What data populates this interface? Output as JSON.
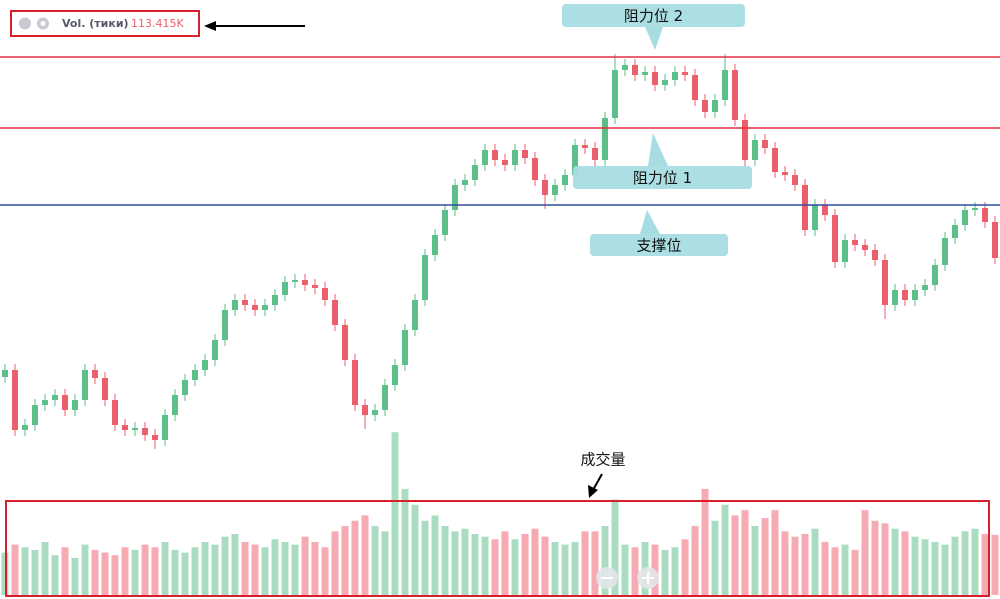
{
  "chart_data": {
    "type": "candlestick",
    "indicator": {
      "name": "Vol. (тики)",
      "value_label": "113.415K"
    },
    "volume_annotation": "成交量",
    "ylim": [
      0,
      599
    ],
    "vlim": [
      0,
      330
    ],
    "open": [
      222,
      229,
      169,
      174,
      194,
      199,
      204,
      189,
      199,
      229,
      221,
      199,
      174,
      169,
      171,
      164,
      159,
      184,
      204,
      219,
      229,
      239,
      259,
      289,
      299,
      294,
      289,
      294,
      304,
      317,
      319,
      314,
      311,
      299,
      274,
      239,
      194,
      184,
      189,
      214,
      234,
      269,
      299,
      344,
      364,
      389,
      414,
      419,
      434,
      449,
      439,
      434,
      449,
      441,
      419,
      404,
      414,
      424,
      454,
      451,
      439,
      481,
      529,
      534,
      524,
      527,
      514,
      519,
      527,
      524,
      499,
      487,
      499,
      529,
      479,
      439,
      459,
      451,
      427,
      424,
      414,
      369,
      394,
      384,
      337,
      359,
      354,
      349,
      339,
      294,
      309,
      299,
      309,
      314,
      334,
      361,
      374,
      389,
      391,
      377
    ],
    "high": [
      235,
      235,
      180,
      200,
      205,
      210,
      210,
      205,
      235,
      235,
      227,
      205,
      180,
      177,
      177,
      170,
      190,
      210,
      225,
      235,
      245,
      265,
      295,
      305,
      305,
      300,
      300,
      310,
      323,
      325,
      325,
      320,
      317,
      305,
      280,
      245,
      200,
      195,
      220,
      240,
      275,
      305,
      350,
      370,
      395,
      420,
      425,
      440,
      455,
      455,
      445,
      455,
      455,
      447,
      425,
      420,
      430,
      460,
      460,
      457,
      487,
      545,
      540,
      540,
      533,
      533,
      525,
      533,
      533,
      530,
      505,
      505,
      545,
      535,
      485,
      465,
      465,
      457,
      433,
      430,
      420,
      400,
      400,
      390,
      365,
      365,
      360,
      355,
      345,
      315,
      315,
      315,
      320,
      340,
      367,
      380,
      395,
      397,
      397,
      383
    ],
    "low": [
      216,
      163,
      163,
      168,
      188,
      193,
      183,
      183,
      193,
      215,
      193,
      168,
      163,
      163,
      158,
      150,
      153,
      178,
      198,
      213,
      223,
      233,
      253,
      283,
      288,
      283,
      283,
      288,
      298,
      311,
      308,
      305,
      293,
      268,
      233,
      188,
      170,
      178,
      183,
      208,
      228,
      263,
      293,
      338,
      358,
      383,
      408,
      413,
      428,
      433,
      428,
      428,
      435,
      413,
      390,
      398,
      408,
      418,
      445,
      433,
      433,
      475,
      523,
      518,
      518,
      508,
      508,
      513,
      518,
      493,
      481,
      481,
      493,
      473,
      433,
      433,
      445,
      421,
      418,
      408,
      363,
      363,
      378,
      331,
      331,
      348,
      343,
      333,
      280,
      288,
      293,
      293,
      303,
      308,
      328,
      355,
      368,
      383,
      371,
      335
    ],
    "close": [
      229,
      169,
      174,
      194,
      199,
      204,
      189,
      199,
      229,
      221,
      199,
      174,
      169,
      171,
      164,
      159,
      184,
      204,
      219,
      229,
      239,
      259,
      289,
      299,
      294,
      289,
      294,
      304,
      317,
      319,
      314,
      311,
      299,
      274,
      239,
      194,
      184,
      189,
      214,
      234,
      269,
      299,
      344,
      364,
      389,
      414,
      419,
      434,
      449,
      439,
      434,
      449,
      441,
      419,
      404,
      414,
      424,
      454,
      451,
      439,
      481,
      529,
      534,
      524,
      527,
      514,
      519,
      527,
      524,
      499,
      487,
      499,
      529,
      479,
      439,
      459,
      451,
      427,
      424,
      414,
      369,
      394,
      384,
      337,
      359,
      354,
      349,
      339,
      294,
      309,
      299,
      309,
      314,
      334,
      361,
      374,
      389,
      391,
      377,
      341
    ],
    "volume": [
      80,
      95,
      90,
      85,
      100,
      75,
      90,
      70,
      95,
      85,
      80,
      75,
      90,
      85,
      95,
      90,
      100,
      85,
      80,
      90,
      100,
      95,
      110,
      115,
      100,
      95,
      90,
      105,
      100,
      95,
      110,
      100,
      90,
      120,
      130,
      140,
      150,
      130,
      120,
      307,
      200,
      170,
      140,
      150,
      130,
      120,
      125,
      115,
      110,
      105,
      120,
      105,
      115,
      125,
      110,
      100,
      95,
      100,
      120,
      120,
      130,
      180,
      95,
      90,
      100,
      95,
      85,
      90,
      105,
      130,
      200,
      140,
      170,
      150,
      160,
      130,
      145,
      160,
      120,
      110,
      115,
      125,
      100,
      90,
      95,
      85,
      160,
      140,
      135,
      125,
      120,
      110,
      105,
      100,
      95,
      110,
      120,
      125,
      115,
      113.415
    ],
    "up_color": "#5cbf8a",
    "down_color": "#e9606c",
    "volume_up_color": "#a9dcc0",
    "volume_down_color": "#f6aab2",
    "levels": [
      {
        "label": "阻力位 2",
        "value": 542,
        "color": "#e0303f"
      },
      {
        "label": "阻力位 1",
        "value": 471,
        "color": "#e0303f"
      },
      {
        "label": "支撑位",
        "value": 394,
        "color": "#2f4f9a"
      }
    ]
  }
}
